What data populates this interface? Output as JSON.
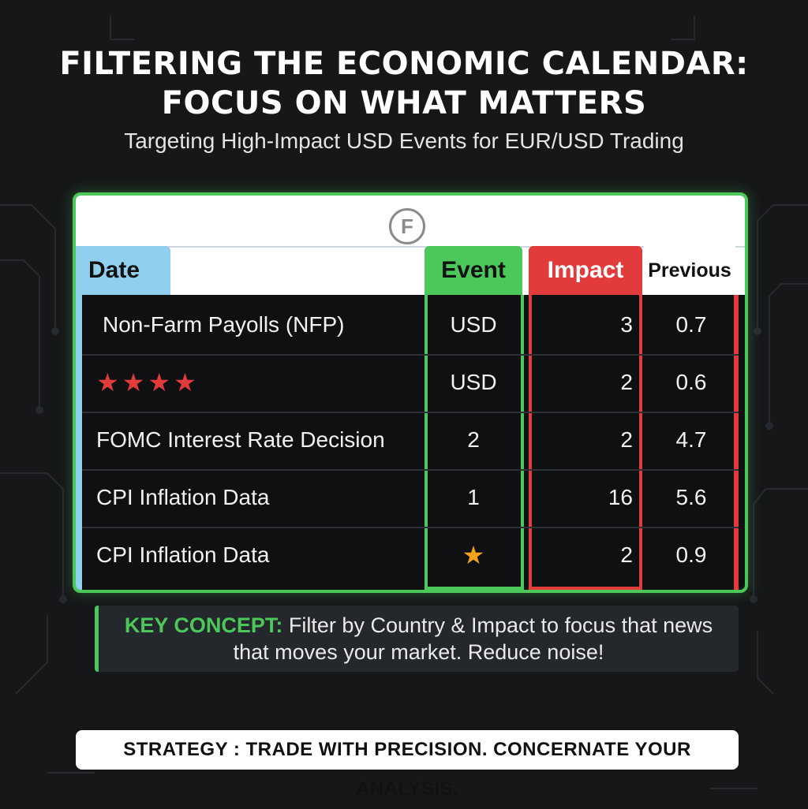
{
  "title_line1": "FILTERING THE ECONOMIC CALENDAR:",
  "title_line2": "FOCUS ON WHAT MATTERS",
  "subtitle": "Targeting High-Impact USD Events for EUR/USD Trading",
  "logo_letter": "F",
  "table": {
    "headers": {
      "date": "Date",
      "event": "Event",
      "impact": "Impact",
      "previous": "Previous"
    },
    "rows": [
      {
        "date": "Non-Farm Payolls (NFP)",
        "event": "USD",
        "impact": "3",
        "previous": "0.7"
      },
      {
        "date": "★★★★",
        "event": "USD",
        "impact": "2",
        "previous": "0.6"
      },
      {
        "date": "FOMC Interest Rate Decision",
        "event": "2",
        "impact": "2",
        "previous": "4.7"
      },
      {
        "date": "CPI Inflation Data",
        "event": "1",
        "impact": "16",
        "previous": "5.6"
      },
      {
        "date": "CPI Inflation Data",
        "event": "★",
        "impact": "2",
        "previous": "0.9"
      }
    ]
  },
  "key_concept": {
    "label": "KEY CONCEPT:",
    "text_line1": "Filter by Country & Impact to focus that news",
    "text_line2": "that moves your market. Reduce noise!"
  },
  "strategy": "STRATEGY : TRADE WITH PRECISION. CONCERNATE YOUR ANALYSIS.",
  "colors": {
    "green": "#4cc85a",
    "red": "#e23b3b",
    "blue": "#90d0ee",
    "gold": "#f2a31b",
    "background": "#161719"
  }
}
